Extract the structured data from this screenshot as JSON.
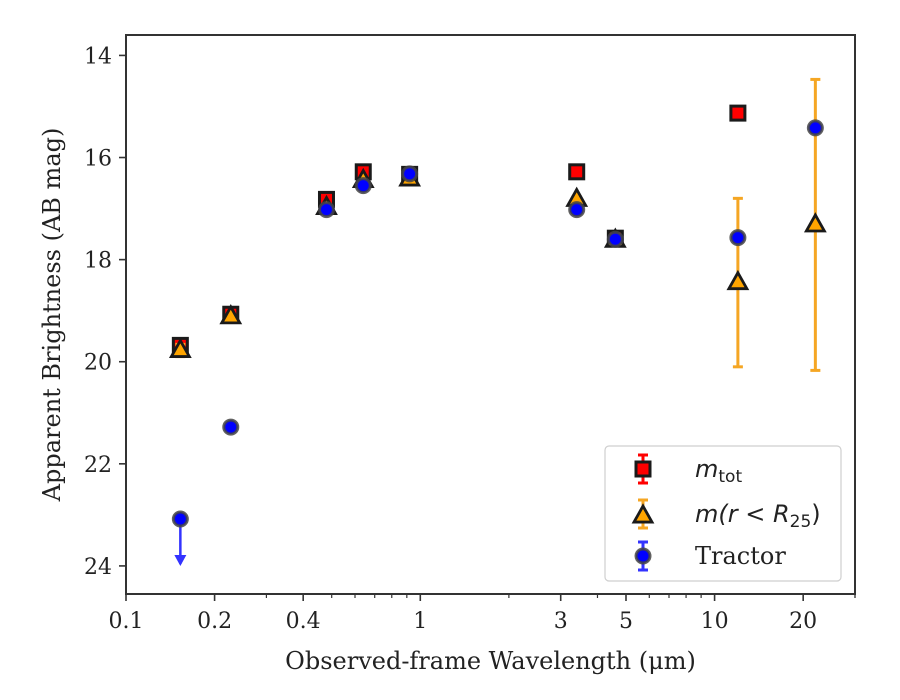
{
  "chart_data": {
    "type": "scatter",
    "xlabel": "Observed-frame Wavelength (μm)",
    "ylabel": "Apparent Brightness (AB mag)",
    "x_scale": "log",
    "xlim": [
      0.1,
      30
    ],
    "ylim": [
      24.55,
      13.6
    ],
    "y_inverted": true,
    "x_ticks": [
      0.1,
      0.2,
      0.4,
      1,
      3,
      5,
      10,
      20
    ],
    "x_tick_labels": [
      "0.1",
      "0.2",
      "0.4",
      "1",
      "3",
      "5",
      "10",
      "20"
    ],
    "y_ticks": [
      14,
      16,
      18,
      20,
      22,
      24
    ],
    "y_tick_labels": [
      "14",
      "16",
      "18",
      "20",
      "22",
      "24"
    ],
    "grid": false,
    "legend_position": "lower-right",
    "series": [
      {
        "name": "m_tot",
        "legend_main": "m",
        "legend_sub": "tot",
        "marker": "square",
        "color": "#ff0000",
        "edge_color": "#1a1a1a",
        "errorbar_color": "#ff0000",
        "points": [
          {
            "x": 0.153,
            "y": 19.68,
            "yerr": 0.06
          },
          {
            "x": 0.227,
            "y": 19.07,
            "yerr": 0.05
          },
          {
            "x": 0.48,
            "y": 16.82,
            "yerr": 0.05
          },
          {
            "x": 0.64,
            "y": 16.28,
            "yerr": 0.05
          },
          {
            "x": 0.92,
            "y": 16.33,
            "yerr": 0.05
          },
          {
            "x": 3.4,
            "y": 16.28,
            "yerr": 0.05
          },
          {
            "x": 4.6,
            "y": 17.58,
            "yerr": 0.05
          },
          {
            "x": 12.0,
            "y": 15.13,
            "yerr": 0.05
          }
        ]
      },
      {
        "name": "m(r<R_25)",
        "legend_main": "m(r < R",
        "legend_sub": "25",
        "legend_close": ")",
        "marker": "triangle",
        "color": "#ffa500",
        "edge_color": "#1a1a1a",
        "errorbar_color": "#f5a623",
        "points": [
          {
            "x": 0.153,
            "y": 19.78,
            "yerr": 0.12
          },
          {
            "x": 0.227,
            "y": 19.12,
            "yerr": 0.05
          },
          {
            "x": 0.48,
            "y": 16.98,
            "yerr": 0.05
          },
          {
            "x": 0.64,
            "y": 16.45,
            "yerr": 0.05
          },
          {
            "x": 0.92,
            "y": 16.42,
            "yerr": 0.05
          },
          {
            "x": 3.4,
            "y": 16.82,
            "yerr": 0.05
          },
          {
            "x": 4.6,
            "y": 17.62,
            "yerr": 0.05
          },
          {
            "x": 12.0,
            "y": 18.45,
            "yerr": 1.65
          },
          {
            "x": 22.0,
            "y": 17.32,
            "yerr": 2.85
          }
        ]
      },
      {
        "name": "Tractor",
        "marker": "circle",
        "color": "#0000ff",
        "edge_color": "#444444",
        "errorbar_color": "#3333ff",
        "points": [
          {
            "x": 0.153,
            "y": 23.08,
            "upper_limit": true
          },
          {
            "x": 0.227,
            "y": 21.28
          },
          {
            "x": 0.48,
            "y": 17.02
          },
          {
            "x": 0.64,
            "y": 16.55
          },
          {
            "x": 0.92,
            "y": 16.32
          },
          {
            "x": 3.4,
            "y": 17.02
          },
          {
            "x": 4.6,
            "y": 17.6
          },
          {
            "x": 12.0,
            "y": 17.57,
            "yerr": 0.05
          },
          {
            "x": 22.0,
            "y": 15.42,
            "yerr": 0.05
          }
        ]
      }
    ],
    "legend": [
      {
        "series": 0
      },
      {
        "series": 1
      },
      {
        "series": 2,
        "label": "Tractor"
      }
    ]
  }
}
